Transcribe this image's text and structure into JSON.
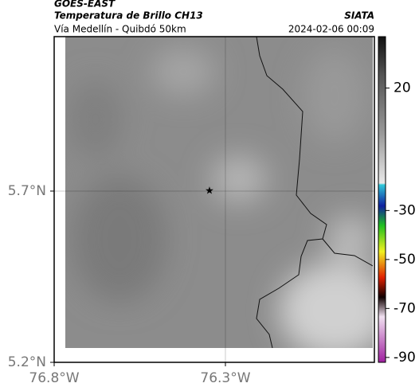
{
  "header": {
    "source": "GOES-EAST",
    "title": "Temperatura de Brillo CH13",
    "agency": "SIATA",
    "subtitle": "Vía Medellín - Quibdó 50km",
    "datetime": "2024-02-06 00:09"
  },
  "map": {
    "lonlim": [
      -76.8,
      -75.865
    ],
    "latlim": [
      5.2,
      6.151
    ],
    "lat_ticks": [
      {
        "value": 5.2,
        "label": "5.2°N"
      },
      {
        "value": 5.7,
        "label": "5.7°N"
      }
    ],
    "lon_ticks": [
      {
        "value": -76.8,
        "label": "76.8°W"
      },
      {
        "value": -76.3,
        "label": "76.3°W"
      }
    ]
  },
  "colorbar": {
    "lim": [
      -92,
      41
    ],
    "ticks": [
      20,
      -30,
      -50,
      -70,
      -90
    ]
  }
}
